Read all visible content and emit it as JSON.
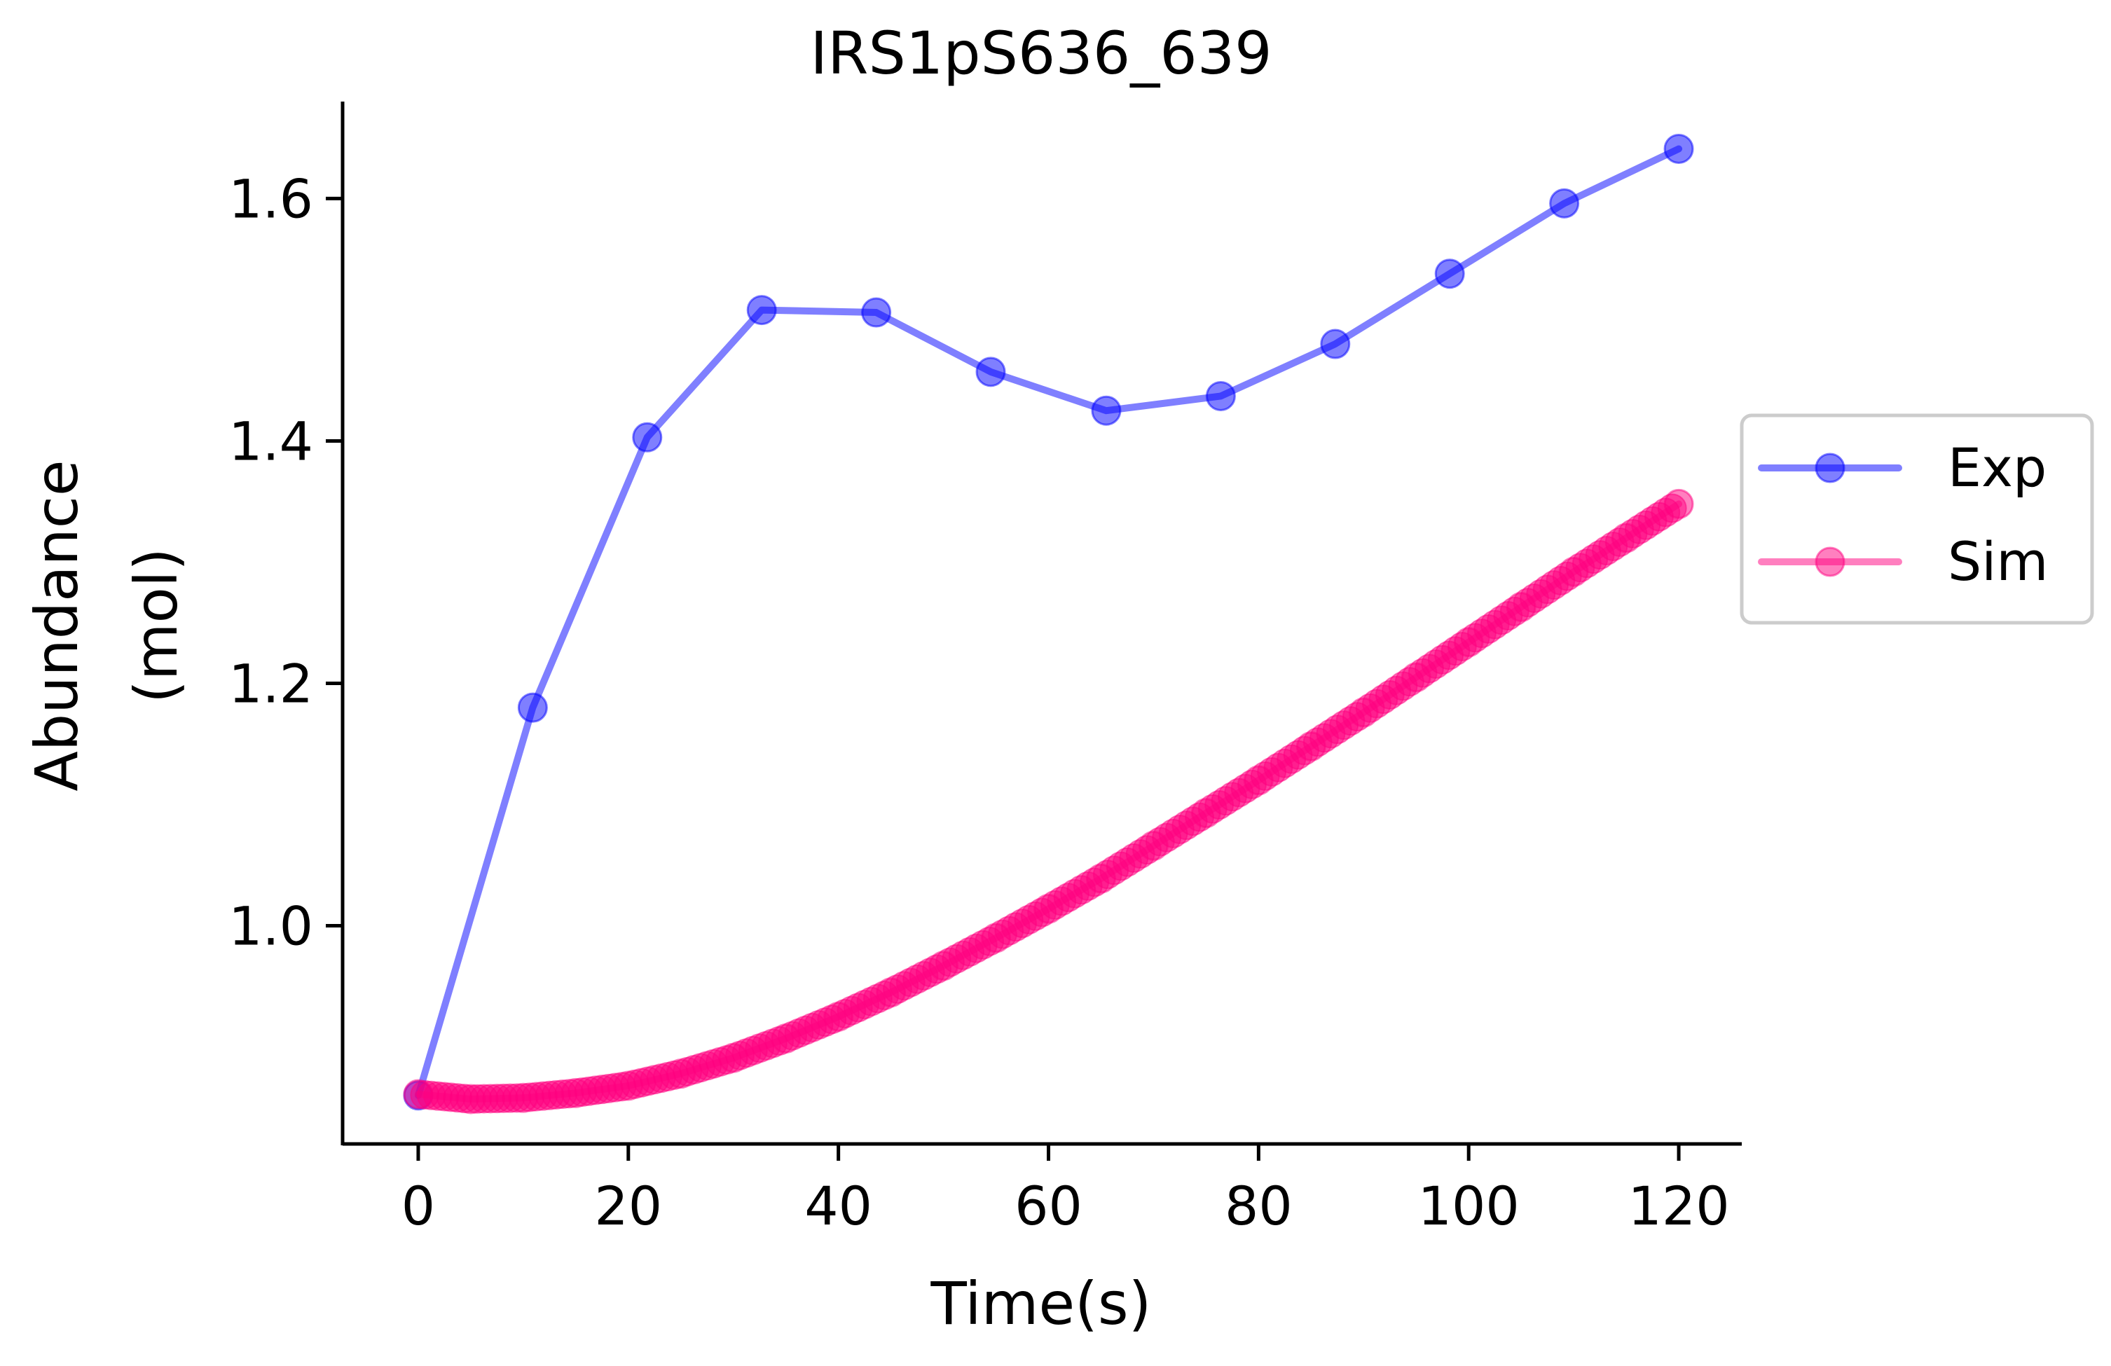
{
  "chart_data": {
    "type": "line",
    "title": "IRS1pS636_639",
    "xlabel": "Time(s)",
    "ylabel_lines": [
      "Abundance",
      "(mol)"
    ],
    "xlim": [
      -7.2,
      126
    ],
    "ylim": [
      0.82,
      1.68
    ],
    "xticks": [
      0,
      20,
      40,
      60,
      80,
      100,
      120
    ],
    "xtick_labels": [
      "0",
      "20",
      "40",
      "60",
      "80",
      "100",
      "120"
    ],
    "yticks": [
      1.0,
      1.2,
      1.4,
      1.6
    ],
    "ytick_labels": [
      "1.0",
      "1.2",
      "1.4",
      "1.6"
    ],
    "grid": false,
    "legend_position": "center-right outside",
    "series": [
      {
        "name": "Exp",
        "color": "#0000ff",
        "x": [
          0,
          10.9,
          21.8,
          32.7,
          43.6,
          54.5,
          65.5,
          76.4,
          87.3,
          98.2,
          109.1,
          120
        ],
        "y": [
          0.86,
          1.18,
          1.403,
          1.508,
          1.506,
          1.457,
          1.425,
          1.437,
          1.48,
          1.538,
          1.596,
          1.641
        ]
      },
      {
        "name": "Sim",
        "color": "#ff007f",
        "x": [
          0,
          5,
          10,
          15,
          20,
          25,
          30,
          35,
          40,
          45,
          50,
          55,
          60,
          65,
          70,
          75,
          80,
          85,
          90,
          95,
          100,
          105,
          110,
          115,
          120
        ],
        "y": [
          0.861,
          0.857,
          0.858,
          0.862,
          0.868,
          0.878,
          0.891,
          0.907,
          0.925,
          0.945,
          0.967,
          0.99,
          1.014,
          1.039,
          1.066,
          1.093,
          1.12,
          1.148,
          1.176,
          1.205,
          1.234,
          1.263,
          1.292,
          1.32,
          1.348
        ]
      }
    ]
  }
}
